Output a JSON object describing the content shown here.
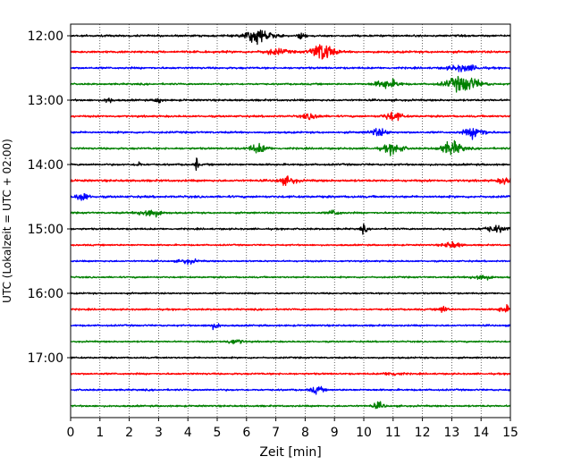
{
  "chart_data": {
    "type": "line",
    "xlabel": "Zeit  [min]",
    "ylabel": "UTC (Lokalzeit = UTC + 02:00)",
    "xlim": [
      0,
      15
    ],
    "x_ticks": [
      0,
      1,
      2,
      3,
      4,
      5,
      6,
      7,
      8,
      9,
      10,
      11,
      12,
      13,
      14,
      15
    ],
    "x_tick_labels": [
      "0",
      "1",
      "2",
      "3",
      "4",
      "5",
      "6",
      "7",
      "8",
      "9",
      "10",
      "11",
      "12",
      "13",
      "14",
      "15"
    ],
    "vertical_grid": "dotted",
    "y_ticks": [
      "12:00",
      "13:00",
      "14:00",
      "15:00",
      "16:00",
      "17:00"
    ],
    "trace_colors": [
      "#000000",
      "#ff0000",
      "#0000ff",
      "#008000"
    ],
    "trace_interval_min": 15,
    "traces": [
      {
        "start": "12:00",
        "amp": 0.22,
        "events": [
          {
            "t": 6.4,
            "a": 1.7,
            "w": 0.45
          },
          {
            "t": 7.9,
            "a": 0.9,
            "w": 0.12
          }
        ]
      },
      {
        "start": "12:15",
        "amp": 0.25,
        "events": [
          {
            "t": 8.6,
            "a": 2.2,
            "w": 0.35
          },
          {
            "t": 7.0,
            "a": 0.6,
            "w": 0.4
          }
        ]
      },
      {
        "start": "12:30",
        "amp": 0.22,
        "events": [
          {
            "t": 13.4,
            "a": 0.7,
            "w": 0.5
          }
        ]
      },
      {
        "start": "12:45",
        "amp": 0.2,
        "events": [
          {
            "t": 13.4,
            "a": 1.8,
            "w": 0.55
          },
          {
            "t": 10.8,
            "a": 1.0,
            "w": 0.4
          }
        ]
      },
      {
        "start": "13:00",
        "amp": 0.22,
        "events": [
          {
            "t": 1.3,
            "a": 0.9,
            "w": 0.1
          },
          {
            "t": 3.0,
            "a": 0.9,
            "w": 0.1
          }
        ]
      },
      {
        "start": "13:15",
        "amp": 0.22,
        "events": [
          {
            "t": 11.0,
            "a": 1.0,
            "w": 0.3
          },
          {
            "t": 8.2,
            "a": 0.6,
            "w": 0.3
          }
        ]
      },
      {
        "start": "13:30",
        "amp": 0.22,
        "events": [
          {
            "t": 13.8,
            "a": 1.2,
            "w": 0.35
          },
          {
            "t": 10.5,
            "a": 0.8,
            "w": 0.3
          }
        ]
      },
      {
        "start": "13:45",
        "amp": 0.22,
        "events": [
          {
            "t": 13.0,
            "a": 1.6,
            "w": 0.35
          },
          {
            "t": 11.0,
            "a": 1.1,
            "w": 0.35
          },
          {
            "t": 6.4,
            "a": 1.0,
            "w": 0.3
          }
        ]
      },
      {
        "start": "14:00",
        "amp": 0.22,
        "events": [
          {
            "t": 4.3,
            "a": 1.7,
            "w": 0.05
          },
          {
            "t": 2.3,
            "a": 0.9,
            "w": 0.08
          }
        ]
      },
      {
        "start": "14:15",
        "amp": 0.25,
        "events": [
          {
            "t": 7.4,
            "a": 0.8,
            "w": 0.3
          },
          {
            "t": 14.8,
            "a": 0.8,
            "w": 0.2
          }
        ]
      },
      {
        "start": "14:30",
        "amp": 0.25,
        "events": [
          {
            "t": 0.4,
            "a": 1.0,
            "w": 0.2
          }
        ]
      },
      {
        "start": "14:45",
        "amp": 0.2,
        "events": [
          {
            "t": 2.7,
            "a": 1.0,
            "w": 0.35
          },
          {
            "t": 9.0,
            "a": 0.6,
            "w": 0.2
          }
        ]
      },
      {
        "start": "15:00",
        "amp": 0.2,
        "events": [
          {
            "t": 10.0,
            "a": 0.9,
            "w": 0.1
          },
          {
            "t": 14.5,
            "a": 0.7,
            "w": 0.4
          }
        ]
      },
      {
        "start": "15:15",
        "amp": 0.18,
        "events": [
          {
            "t": 13.0,
            "a": 0.7,
            "w": 0.3
          }
        ]
      },
      {
        "start": "15:30",
        "amp": 0.18,
        "events": [
          {
            "t": 4.0,
            "a": 0.5,
            "w": 0.3
          }
        ]
      },
      {
        "start": "15:45",
        "amp": 0.18,
        "events": [
          {
            "t": 14.0,
            "a": 0.7,
            "w": 0.3
          }
        ]
      },
      {
        "start": "16:00",
        "amp": 0.18,
        "events": []
      },
      {
        "start": "16:15",
        "amp": 0.2,
        "events": [
          {
            "t": 12.7,
            "a": 0.8,
            "w": 0.15
          },
          {
            "t": 14.8,
            "a": 0.8,
            "w": 0.2
          }
        ]
      },
      {
        "start": "16:30",
        "amp": 0.2,
        "events": [
          {
            "t": 4.9,
            "a": 0.6,
            "w": 0.2
          }
        ]
      },
      {
        "start": "16:45",
        "amp": 0.18,
        "events": [
          {
            "t": 5.6,
            "a": 0.5,
            "w": 0.3
          }
        ]
      },
      {
        "start": "17:00",
        "amp": 0.18,
        "events": []
      },
      {
        "start": "17:15",
        "amp": 0.2,
        "events": [
          {
            "t": 11.0,
            "a": 0.4,
            "w": 0.3
          }
        ]
      },
      {
        "start": "17:30",
        "amp": 0.2,
        "events": [
          {
            "t": 8.4,
            "a": 0.8,
            "w": 0.2
          }
        ]
      },
      {
        "start": "17:45",
        "amp": 0.2,
        "events": [
          {
            "t": 10.5,
            "a": 0.7,
            "w": 0.2
          }
        ]
      }
    ]
  }
}
